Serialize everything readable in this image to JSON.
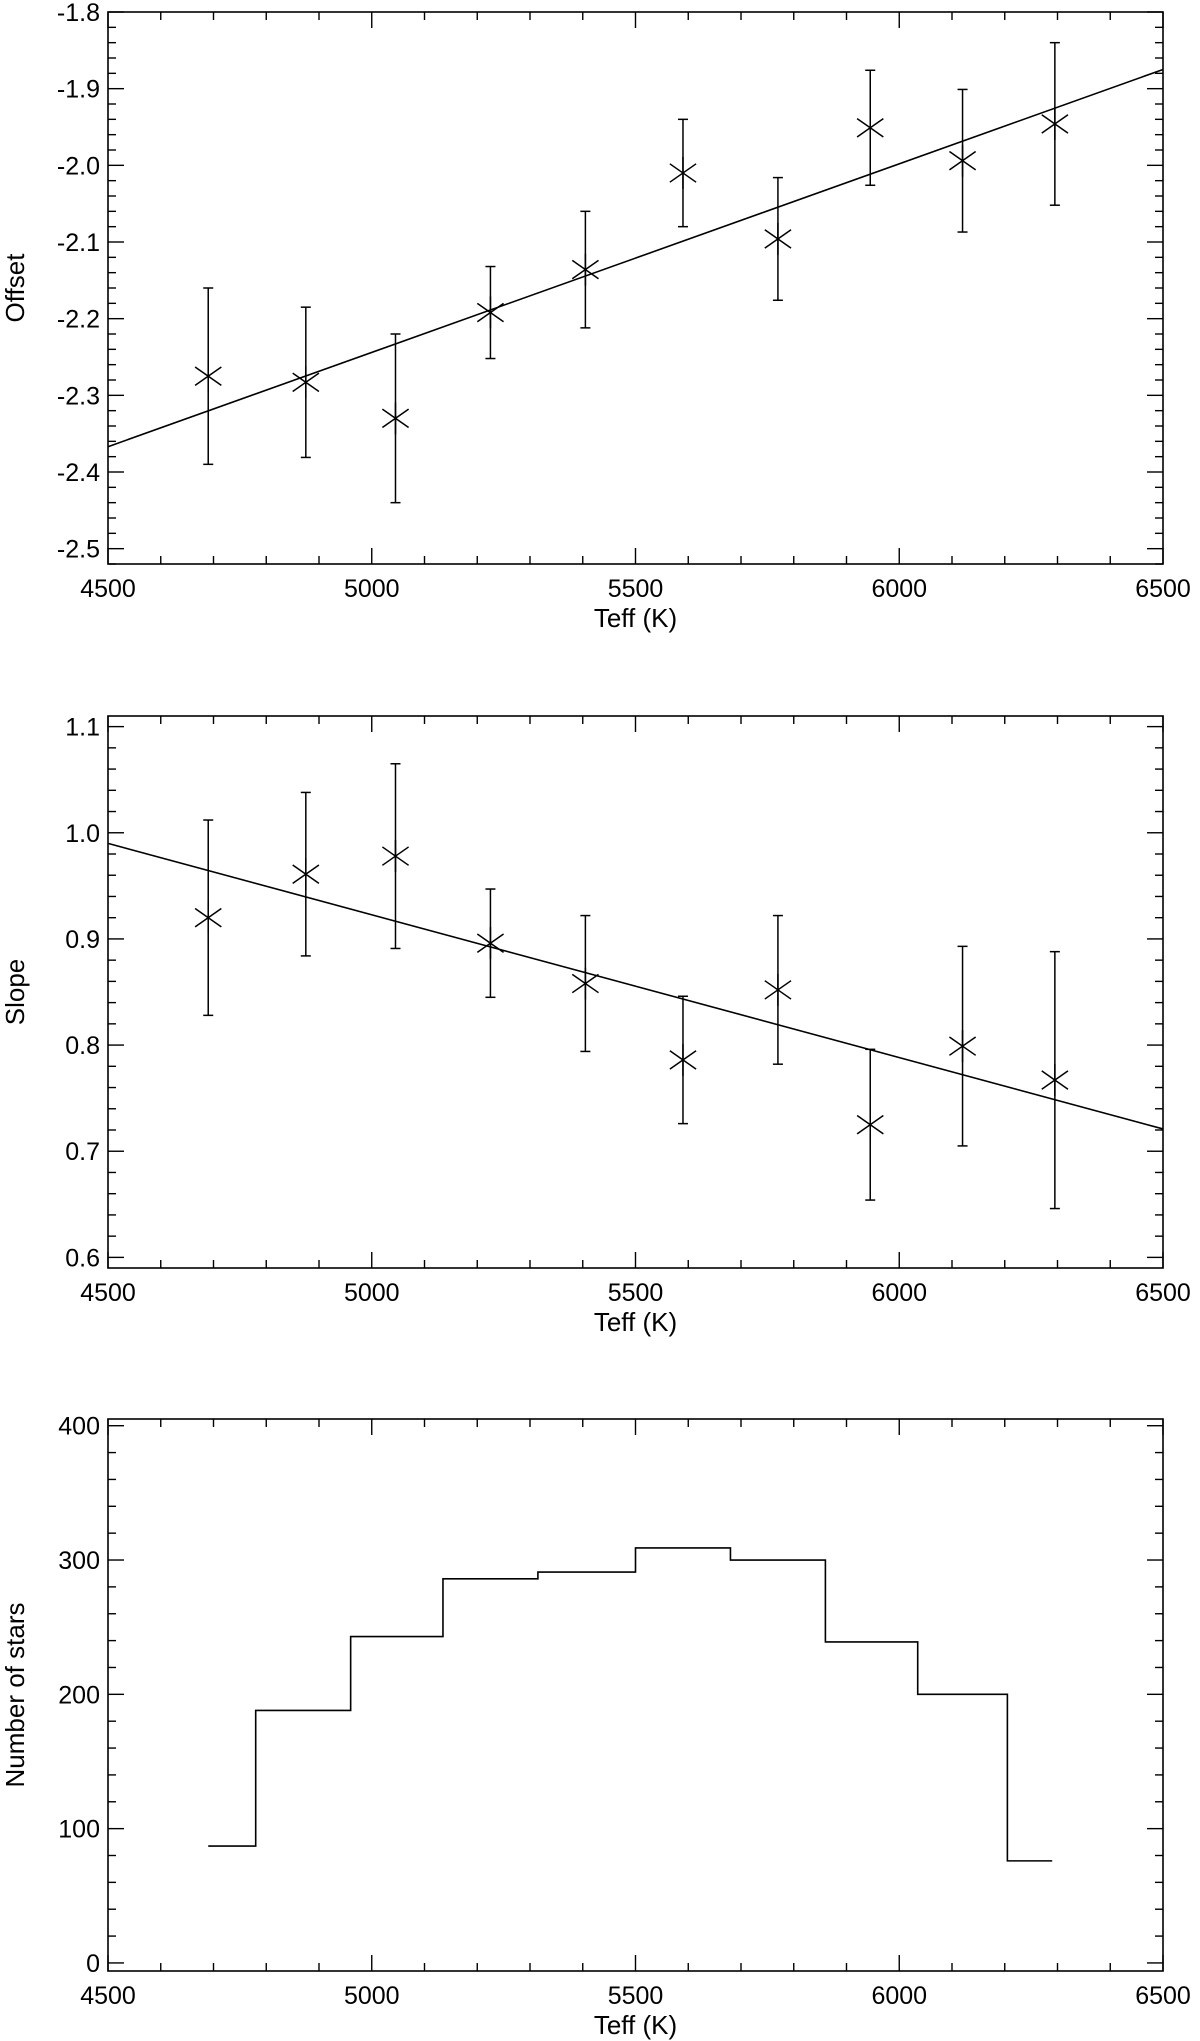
{
  "chart_data": [
    {
      "type": "scatter",
      "xlabel": "Teff (K)",
      "ylabel": "Offset",
      "xlim": [
        4500,
        6500
      ],
      "ylim": [
        -2.52,
        -1.8
      ],
      "xticks": [
        4500,
        5000,
        5500,
        6000,
        6500
      ],
      "xtick_labels": [
        "4500",
        "5000",
        "5500",
        "6000",
        "6500"
      ],
      "yticks": [
        -1.8,
        -1.9,
        -2.0,
        -2.1,
        -2.2,
        -2.3,
        -2.4,
        -2.5
      ],
      "ytick_labels": [
        "-1.8",
        "-1.9",
        "-2.0",
        "-2.1",
        "-2.2",
        "-2.3",
        "-2.4",
        "-2.5"
      ],
      "marker": "asterisk",
      "points": [
        {
          "x": 4690,
          "y": -2.275,
          "err": 0.115
        },
        {
          "x": 4875,
          "y": -2.283,
          "err": 0.098
        },
        {
          "x": 5045,
          "y": -2.33,
          "err": 0.11
        },
        {
          "x": 5225,
          "y": -2.192,
          "err": 0.06
        },
        {
          "x": 5405,
          "y": -2.136,
          "err": 0.076
        },
        {
          "x": 5590,
          "y": -2.01,
          "err": 0.07
        },
        {
          "x": 5770,
          "y": -2.096,
          "err": 0.08
        },
        {
          "x": 5945,
          "y": -1.951,
          "err": 0.075
        },
        {
          "x": 6120,
          "y": -1.994,
          "err": 0.093
        },
        {
          "x": 6295,
          "y": -1.946,
          "err": 0.106
        }
      ],
      "fit_line": {
        "x": [
          4500,
          6500
        ],
        "y": [
          -2.367,
          -1.875
        ]
      }
    },
    {
      "type": "scatter",
      "xlabel": "Teff (K)",
      "ylabel": "Slope",
      "xlim": [
        4500,
        6500
      ],
      "ylim": [
        0.59,
        1.11
      ],
      "xticks": [
        4500,
        5000,
        5500,
        6000,
        6500
      ],
      "xtick_labels": [
        "4500",
        "5000",
        "5500",
        "6000",
        "6500"
      ],
      "yticks": [
        0.6,
        0.7,
        0.8,
        0.9,
        1.0,
        1.1
      ],
      "ytick_labels": [
        "0.6",
        "0.7",
        "0.8",
        "0.9",
        "1.0",
        "1.1"
      ],
      "marker": "asterisk",
      "points": [
        {
          "x": 4690,
          "y": 0.92,
          "err": 0.092
        },
        {
          "x": 4875,
          "y": 0.961,
          "err": 0.077
        },
        {
          "x": 5045,
          "y": 0.978,
          "err": 0.087
        },
        {
          "x": 5225,
          "y": 0.896,
          "err": 0.051
        },
        {
          "x": 5405,
          "y": 0.858,
          "err": 0.064
        },
        {
          "x": 5590,
          "y": 0.786,
          "err": 0.06
        },
        {
          "x": 5770,
          "y": 0.852,
          "err": 0.07
        },
        {
          "x": 5945,
          "y": 0.725,
          "err": 0.071
        },
        {
          "x": 6120,
          "y": 0.799,
          "err": 0.094
        },
        {
          "x": 6295,
          "y": 0.767,
          "err": 0.121
        }
      ],
      "fit_line": {
        "x": [
          4500,
          6500
        ],
        "y": [
          0.99,
          0.721
        ]
      }
    },
    {
      "type": "bar",
      "style": "step-histogram",
      "xlabel": "Teff (K)",
      "ylabel": "Number of stars",
      "xlim": [
        4500,
        6500
      ],
      "ylim": [
        -6,
        405
      ],
      "xticks": [
        4500,
        5000,
        5500,
        6000,
        6500
      ],
      "xtick_labels": [
        "4500",
        "5000",
        "5500",
        "6000",
        "6500"
      ],
      "yticks": [
        0,
        100,
        200,
        300,
        400
      ],
      "ytick_labels": [
        "0",
        "100",
        "200",
        "300",
        "400"
      ],
      "bin_edges": [
        4690,
        4780,
        4960,
        5135,
        5315,
        5500,
        5680,
        5860,
        6035,
        6205,
        6290
      ],
      "counts": [
        87,
        188,
        243,
        286,
        291,
        309,
        300,
        239,
        200,
        76
      ]
    }
  ]
}
